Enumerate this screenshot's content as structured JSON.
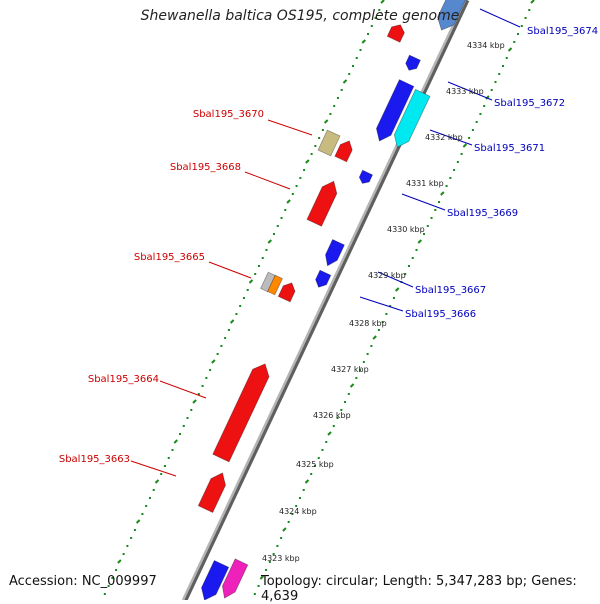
{
  "title": "Shewanella baltica OS195, complete genome",
  "footer": {
    "accession": "Accession: NC_009997",
    "summary": "Topology: circular; Length: 5,347,283 bp; Genes: 4,639"
  },
  "colors": {
    "reverse_label": "#cc0000",
    "forward_label": "#0000bb",
    "backbone": "#9a9a9a",
    "ruler_dots": "#1a8a1a"
  },
  "ticks": [
    "4334 kbp",
    "4333 kbp",
    "4332 kbp",
    "4331 kbp",
    "4330 kbp",
    "4329 kbp",
    "4328 kbp",
    "4327 kbp",
    "4326 kbp",
    "4325 kbp",
    "4324 kbp",
    "4323 kbp"
  ],
  "genes": [
    {
      "label": "Sbal195_3674",
      "strand": "forward"
    },
    {
      "label": "Sbal195_3672",
      "strand": "forward"
    },
    {
      "label": "Sbal195_3671",
      "strand": "forward"
    },
    {
      "label": "Sbal195_3670",
      "strand": "reverse"
    },
    {
      "label": "Sbal195_3669",
      "strand": "forward"
    },
    {
      "label": "Sbal195_3668",
      "strand": "reverse"
    },
    {
      "label": "Sbal195_3667",
      "strand": "forward"
    },
    {
      "label": "Sbal195_3666",
      "strand": "forward"
    },
    {
      "label": "Sbal195_3665",
      "strand": "reverse"
    },
    {
      "label": "Sbal195_3664",
      "strand": "reverse"
    },
    {
      "label": "Sbal195_3663",
      "strand": "reverse"
    }
  ]
}
